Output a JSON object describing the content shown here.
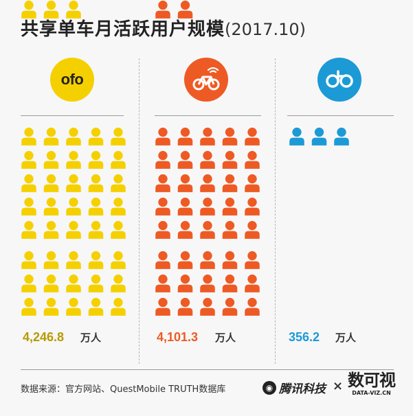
{
  "title": {
    "main": "共享单车月活跃用户规模",
    "period": "(2017.10)"
  },
  "colors": {
    "ofo": "#f5d000",
    "mobike": "#ee5a24",
    "hellobike": "#1c9ad6",
    "ofo_value": "#b79a00"
  },
  "icons": {
    "ofo": "ofo-logo-icon",
    "mobike": "bike-wifi-icon",
    "hellobike": "hello-bike-icon",
    "person": "person-icon"
  },
  "chart_data": {
    "type": "bar",
    "title": "共享单车月活跃用户规模",
    "subtitle": "(2017.10)",
    "categories": [
      "ofo",
      "mobike",
      "hellobike"
    ],
    "values": [
      4246.8,
      4101.3,
      356.2
    ],
    "value_labels": [
      "4,246.8",
      "4,101.3",
      "356.2"
    ],
    "unit": "万人",
    "icon_counts": [
      43,
      42,
      3
    ]
  },
  "footer": {
    "source": "数据来源：官方网站、QuestMobile TRUTH数据库",
    "brand1": "腾讯科技",
    "times": "×",
    "brand2_big": "数可视",
    "brand2_small": "DATA-VIZ.CN"
  }
}
